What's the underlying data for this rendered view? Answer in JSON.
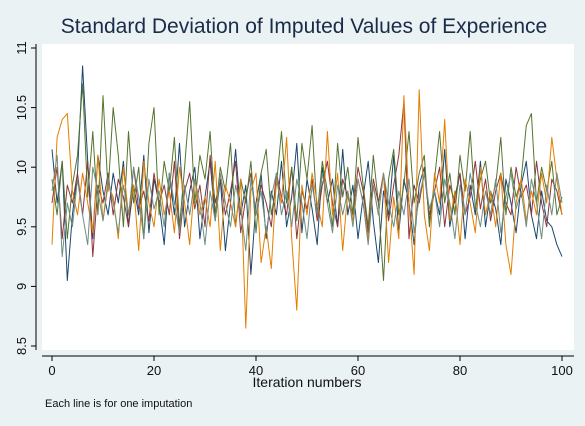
{
  "chart_data": {
    "type": "line",
    "title": "Standard Deviation of Imputed Values of Experience",
    "xlabel": "Iteration numbers",
    "ylabel": "",
    "note": "Each line is for one imputation",
    "xlim": [
      0,
      100
    ],
    "ylim": [
      8.5,
      11
    ],
    "xticks": [
      0,
      20,
      40,
      60,
      80,
      100
    ],
    "yticks": [
      8.5,
      9,
      9.5,
      10,
      10.5,
      11
    ],
    "grid": false,
    "legend": "none",
    "x": [
      0,
      1,
      2,
      3,
      4,
      5,
      6,
      7,
      8,
      9,
      10,
      11,
      12,
      13,
      14,
      15,
      16,
      17,
      18,
      19,
      20,
      21,
      22,
      23,
      24,
      25,
      26,
      27,
      28,
      29,
      30,
      31,
      32,
      33,
      34,
      35,
      36,
      37,
      38,
      39,
      40,
      41,
      42,
      43,
      44,
      45,
      46,
      47,
      48,
      49,
      50,
      51,
      52,
      53,
      54,
      55,
      56,
      57,
      58,
      59,
      60,
      61,
      62,
      63,
      64,
      65,
      66,
      67,
      68,
      69,
      70,
      71,
      72,
      73,
      74,
      75,
      76,
      77,
      78,
      79,
      80,
      81,
      82,
      83,
      84,
      85,
      86,
      87,
      88,
      89,
      90,
      91,
      92,
      93,
      94,
      95,
      96,
      97,
      98,
      99,
      100
    ],
    "series": [
      {
        "color": "#1a476f",
        "values": [
          10.15,
          9.7,
          10.05,
          9.05,
          9.6,
          9.95,
          10.85,
          10.05,
          9.4,
          10.1,
          9.8,
          9.6,
          9.95,
          9.7,
          10.05,
          9.5,
          9.85,
          9.6,
          10.1,
          9.45,
          9.9,
          9.7,
          9.35,
          9.95,
          9.6,
          10.2,
          9.5,
          9.8,
          10.0,
          9.4,
          9.75,
          10.05,
          9.55,
          9.9,
          9.3,
          9.7,
          10.15,
          9.6,
          9.85,
          9.1,
          9.7,
          9.95,
          9.4,
          9.8,
          9.6,
          10.05,
          9.5,
          9.75,
          10.2,
          9.45,
          9.9,
          9.65,
          9.35,
          10.0,
          9.7,
          9.9,
          9.5,
          10.15,
          9.6,
          9.85,
          9.4,
          9.75,
          10.05,
          9.55,
          9.2,
          9.8,
          9.6,
          10.1,
          9.45,
          9.9,
          9.7,
          9.35,
          9.85,
          10.0,
          9.55,
          9.8,
          9.6,
          10.15,
          9.5,
          9.75,
          9.95,
          9.4,
          9.85,
          9.6,
          10.05,
          9.5,
          9.8,
          9.65,
          9.35,
          9.9,
          9.7,
          9.45,
          9.85,
          10.05,
          9.6,
          9.4,
          9.8,
          9.55,
          9.5,
          9.35,
          9.25
        ]
      },
      {
        "color": "#90353b",
        "values": [
          9.7,
          10.0,
          9.4,
          9.85,
          9.7,
          9.95,
          9.6,
          10.05,
          9.25,
          9.85,
          9.7,
          9.95,
          9.6,
          9.9,
          9.75,
          9.5,
          10.0,
          9.65,
          9.8,
          9.55,
          9.95,
          9.7,
          9.85,
          9.6,
          10.05,
          9.4,
          9.8,
          9.95,
          9.65,
          9.85,
          9.5,
          10.1,
          9.7,
          9.9,
          9.6,
          9.8,
          10.05,
          9.45,
          9.75,
          9.95,
          9.6,
          9.85,
          9.7,
          9.5,
          9.95,
          9.75,
          9.6,
          10.0,
          9.4,
          9.8,
          9.65,
          9.9,
          9.55,
          9.85,
          10.05,
          9.7,
          9.5,
          9.9,
          9.75,
          9.6,
          10.0,
          9.8,
          9.45,
          9.9,
          9.7,
          9.95,
          9.55,
          9.85,
          10.1,
          10.55,
          9.4,
          9.85,
          9.7,
          9.95,
          9.6,
          9.8,
          10.0,
          9.5,
          9.85,
          9.7,
          9.95,
          9.6,
          9.75,
          10.05,
          9.65,
          9.9,
          9.55,
          9.8,
          9.95,
          9.7,
          9.6,
          10.0,
          9.75,
          9.85,
          9.6,
          10.05,
          9.7,
          9.5,
          9.9,
          9.8,
          9.6
        ]
      },
      {
        "color": "#55752f",
        "values": [
          9.9,
          9.6,
          10.05,
          9.4,
          9.85,
          10.1,
          10.7,
          9.75,
          10.3,
          9.6,
          10.6,
          9.8,
          10.5,
          10.1,
          9.5,
          10.3,
          9.7,
          10.0,
          9.4,
          10.2,
          10.5,
          9.6,
          10.05,
          9.8,
          10.25,
          9.5,
          10.0,
          10.55,
          9.7,
          10.1,
          9.9,
          10.3,
          9.6,
          10.0,
          9.8,
          10.2,
          9.5,
          9.9,
          9.7,
          10.05,
          9.45,
          9.95,
          10.15,
          9.6,
          9.85,
          10.3,
          9.7,
          10.0,
          9.55,
          10.2,
          9.9,
          10.35,
          9.6,
          10.05,
          9.8,
          9.5,
          10.2,
          9.75,
          10.0,
          9.6,
          10.25,
          9.85,
          9.5,
          10.1,
          9.7,
          9.05,
          9.9,
          10.15,
          9.6,
          9.85,
          10.3,
          9.7,
          9.95,
          10.1,
          9.5,
          9.9,
          10.3,
          9.7,
          9.95,
          9.6,
          10.1,
          9.8,
          10.3,
          9.65,
          9.9,
          10.05,
          9.7,
          9.85,
          10.25,
          9.6,
          10.0,
          9.75,
          9.9,
          10.35,
          10.45,
          9.7,
          10.0,
          9.8,
          10.05,
          9.6,
          9.75
        ]
      },
      {
        "color": "#e37e00",
        "values": [
          9.35,
          10.25,
          10.4,
          10.45,
          9.8,
          9.6,
          9.95,
          9.7,
          9.45,
          10.1,
          9.55,
          9.85,
          9.75,
          9.4,
          10.0,
          9.6,
          9.85,
          9.3,
          10.05,
          9.7,
          9.5,
          9.9,
          9.6,
          9.8,
          9.45,
          10.0,
          9.7,
          9.35,
          9.9,
          9.6,
          9.75,
          9.5,
          10.05,
          9.3,
          9.85,
          9.7,
          9.5,
          9.9,
          8.65,
          9.8,
          9.95,
          9.2,
          9.5,
          9.15,
          9.9,
          9.7,
          10.25,
          9.4,
          8.8,
          9.85,
          9.6,
          9.95,
          9.7,
          9.5,
          10.3,
          9.6,
          9.95,
          9.3,
          9.8,
          9.55,
          9.9,
          9.7,
          9.4,
          9.85,
          9.6,
          9.95,
          9.2,
          9.75,
          9.4,
          10.6,
          9.7,
          9.1,
          10.65,
          9.6,
          9.3,
          9.95,
          9.7,
          10.4,
          9.55,
          9.8,
          9.35,
          9.9,
          9.7,
          9.45,
          10.0,
          9.6,
          9.8,
          9.5,
          9.95,
          9.35,
          9.1,
          9.7,
          9.9,
          9.55,
          9.8,
          9.6,
          9.95,
          9.7,
          10.25,
          9.9,
          9.6
        ]
      },
      {
        "color": "#6e8e84",
        "values": [
          9.8,
          10.1,
          9.25,
          9.7,
          9.5,
          9.9,
          9.6,
          9.35,
          10.0,
          9.8,
          9.55,
          9.9,
          9.7,
          9.45,
          9.85,
          9.6,
          10.0,
          9.75,
          9.4,
          9.9,
          9.65,
          9.8,
          9.5,
          9.95,
          9.7,
          9.45,
          9.85,
          9.6,
          9.9,
          9.7,
          9.35,
          9.8,
          9.55,
          9.95,
          9.7,
          9.5,
          9.85,
          9.65,
          9.3,
          9.9,
          9.6,
          9.8,
          9.45,
          9.75,
          9.95,
          9.6,
          9.8,
          9.5,
          9.9,
          9.7,
          9.4,
          9.85,
          9.6,
          9.95,
          9.7,
          9.45,
          9.85,
          9.6,
          9.8,
          9.5,
          9.9,
          9.7,
          9.35,
          9.85,
          9.6,
          9.95,
          9.7,
          9.5,
          9.8,
          9.6,
          9.9,
          9.45,
          9.75,
          9.95,
          9.65,
          9.8,
          9.5,
          9.9,
          9.7,
          9.4,
          9.85,
          9.6,
          9.95,
          9.7,
          9.5,
          9.8,
          9.6,
          9.9,
          9.45,
          9.75,
          9.95,
          9.65,
          9.8,
          9.5,
          9.9,
          9.7,
          9.4,
          9.85,
          9.6,
          9.95,
          9.7
        ]
      }
    ]
  }
}
